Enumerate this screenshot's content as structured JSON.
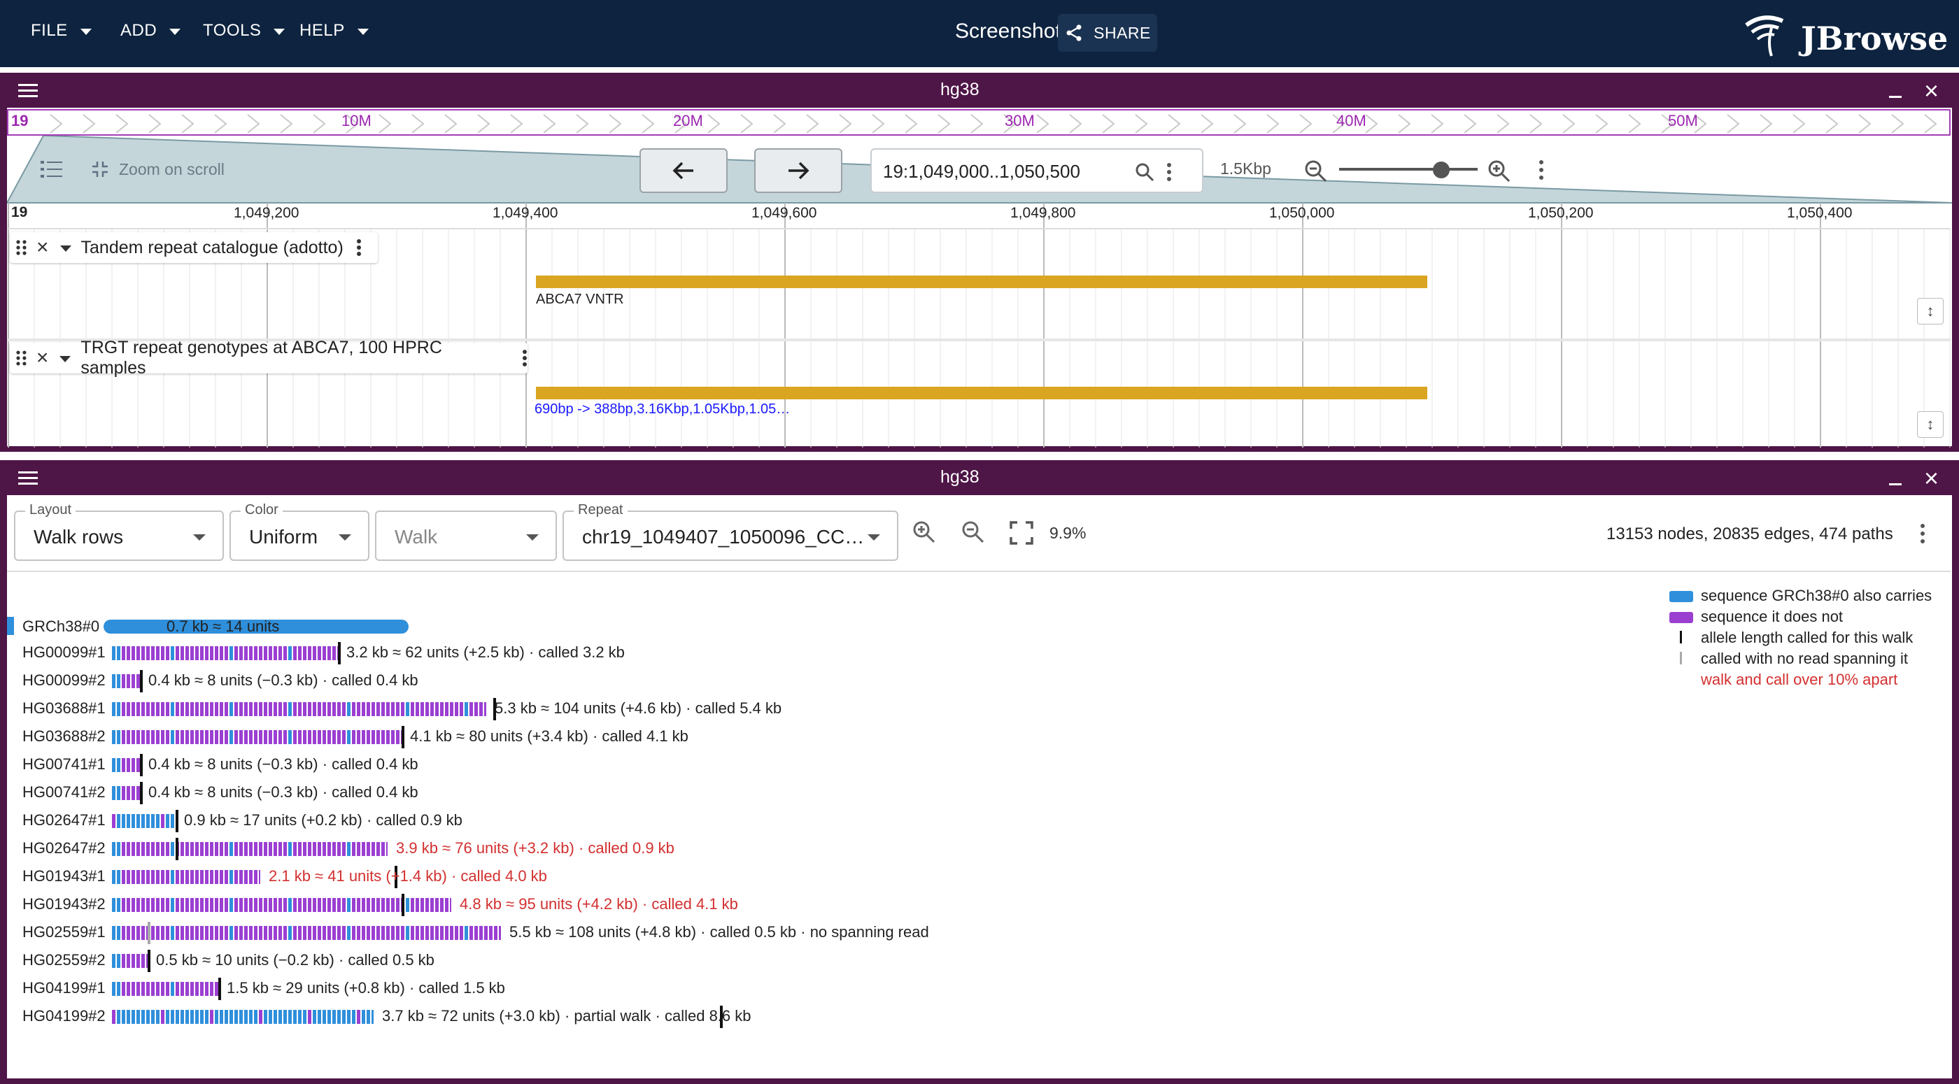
{
  "app": {
    "menus": [
      "FILE",
      "ADD",
      "TOOLS",
      "HELP"
    ],
    "title": "Screenshot",
    "share_label": "SHARE",
    "logo_text": "JBrowse"
  },
  "linear_view": {
    "title": "hg38",
    "overview": {
      "chrom": "19",
      "ticks": [
        "10M",
        "20M",
        "30M",
        "40M",
        "50M"
      ]
    },
    "controls": {
      "zoom_on_scroll_label": "Zoom on scroll",
      "location": "19:1,049,000..1,050,500",
      "span_label": "1.5Kbp"
    },
    "ruler": {
      "chrom": "19",
      "ticks": [
        "1,049,200",
        "1,049,400",
        "1,049,600",
        "1,049,800",
        "1,050,000",
        "1,050,200",
        "1,050,400"
      ]
    },
    "tracks": [
      {
        "name": "Tandem repeat catalogue (adotto)",
        "feature_label": "ABCA7 VNTR"
      },
      {
        "name": "TRGT repeat genotypes at ABCA7, 100 HPRC samples",
        "feature_label": "690bp -> 388bp,3.16Kbp,1.05Kbp,1.05…"
      }
    ]
  },
  "graph_view": {
    "title": "hg38",
    "controls": {
      "layout_label": "Layout",
      "layout_value": "Walk rows",
      "color_label": "Color",
      "color_value": "Uniform",
      "walk_placeholder": "Walk",
      "repeat_label": "Repeat",
      "repeat_value": "chr19_1049407_1050096_CC…",
      "zoom_pct": "9.9%",
      "stats": "13153 nodes, 20835 edges, 474 paths"
    },
    "legend": [
      {
        "text": "sequence GRCh38#0 also carries",
        "color": "#2f8fdb"
      },
      {
        "text": "sequence it does not",
        "color": "#9b3fd1"
      },
      {
        "text": "allele length called for this walk"
      },
      {
        "text": "called with no read spanning it"
      },
      {
        "text": "walk and call over 10% apart",
        "color": "#d32f2f"
      }
    ],
    "colors": {
      "shared": "#2f8fdb",
      "novel": "#9b3fd1",
      "warn": "#d32f2f"
    },
    "reference": {
      "label": "GRCh38#0",
      "text": "0.7 kb ≈ 14 units"
    },
    "walks": [
      {
        "label": "HG00099#1",
        "text": "3.2 kb ≈ 62 units (+2.5 kb) · called 3.2 kb",
        "warn": false
      },
      {
        "label": "HG00099#2",
        "text": "0.4 kb ≈ 8 units (−0.3 kb) · called 0.4 kb",
        "warn": false
      },
      {
        "label": "HG03688#1",
        "text": "5.3 kb ≈ 104 units (+4.6 kb) · called 5.4 kb",
        "warn": false
      },
      {
        "label": "HG03688#2",
        "text": "4.1 kb ≈ 80 units (+3.4 kb) · called 4.1 kb",
        "warn": false
      },
      {
        "label": "HG00741#1",
        "text": "0.4 kb ≈ 8 units (−0.3 kb) · called 0.4 kb",
        "warn": false
      },
      {
        "label": "HG00741#2",
        "text": "0.4 kb ≈ 8 units (−0.3 kb) · called 0.4 kb",
        "warn": false
      },
      {
        "label": "HG02647#1",
        "text": "0.9 kb ≈ 17 units (+0.2 kb) · called 0.9 kb",
        "warn": false
      },
      {
        "label": "HG02647#2",
        "text": "3.9 kb ≈ 76 units (+3.2 kb) · called 0.9 kb",
        "warn": true
      },
      {
        "label": "HG01943#1",
        "text": "2.1 kb ≈ 41 units (+1.4 kb) · called 4.0 kb",
        "warn": true
      },
      {
        "label": "HG01943#2",
        "text": "4.8 kb ≈ 95 units (+4.2 kb) · called 4.1 kb",
        "warn": true
      },
      {
        "label": "HG02559#1",
        "text": "5.5 kb ≈ 108 units (+4.8 kb) · called 0.5 kb · no spanning read",
        "warn": false
      },
      {
        "label": "HG02559#2",
        "text": "0.5 kb ≈ 10 units (−0.2 kb) · called 0.5 kb",
        "warn": false
      },
      {
        "label": "HG04199#1",
        "text": "1.5 kb ≈ 29 units (+0.8 kb) · called 1.5 kb",
        "warn": false
      },
      {
        "label": "HG04199#2",
        "text": "3.7 kb ≈ 72 units (+3.0 kb) · partial walk · called 8.6 kb",
        "warn": false
      }
    ]
  }
}
